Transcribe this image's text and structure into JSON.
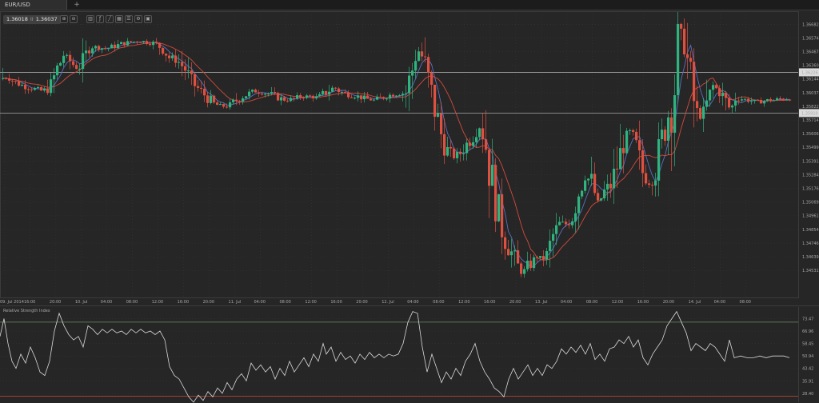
{
  "tab": {
    "label": "EUR/USD",
    "add_label": "+"
  },
  "quote": {
    "bid": "1.36018",
    "separator": "II",
    "ask": "1.36037"
  },
  "toolbar": [
    {
      "icon": "zoom-in-icon",
      "glyph": "⊕"
    },
    {
      "icon": "zoom-out-icon",
      "glyph": "⊖"
    },
    {
      "icon": "chart-type-icon",
      "glyph": "▥"
    },
    {
      "icon": "indicators-icon",
      "glyph": "ƒ"
    },
    {
      "icon": "drawing-tools-icon",
      "glyph": "╱"
    },
    {
      "icon": "template-icon",
      "glyph": "▦"
    },
    {
      "icon": "objects-icon",
      "glyph": "☰"
    },
    {
      "icon": "settings-icon",
      "glyph": "⚙"
    },
    {
      "icon": "screenshot-icon",
      "glyph": "▣"
    }
  ],
  "colors": {
    "background": "#262626",
    "grid": "#3a3a3a",
    "up": "#2fb37f",
    "down": "#e05040",
    "ma_fast": "#5b6fc2",
    "ma_slow": "#d24a3e",
    "hline": "#a8a8a8",
    "rsi": "#d8d8d8",
    "rsi_upper": "#6f8f68",
    "rsi_lower": "#b64336"
  },
  "chart_data": [
    {
      "type": "candlestick",
      "title": "",
      "ylim": [
        1.3448,
        1.367
      ],
      "y_ticks": [
        "1.36682",
        "1.36574",
        "1.36467",
        "1.36360",
        "1.36144",
        "1.36037",
        "1.35822",
        "1.35714",
        "1.35606",
        "1.35499",
        "1.35391",
        "1.35284",
        "1.35176",
        "1.35069",
        "1.34961",
        "1.34854",
        "1.34746",
        "1.34639",
        "1.34531"
      ],
      "x_ticks": [
        "09. Jul 2014",
        "16:00",
        "20:00",
        "10. Jul",
        "04:00",
        "08:00",
        "12:00",
        "16:00",
        "20:00",
        "11. Jul",
        "04:00",
        "08:00",
        "12:00",
        "16:00",
        "20:00",
        "12. Jul",
        "04:00",
        "08:00",
        "12:00",
        "16:00",
        "20:00",
        "13. Jul",
        "04:00",
        "08:00",
        "12:00",
        "16:00",
        "20:00",
        "14. Jul",
        "04:00",
        "08:00"
      ],
      "horizontal_lines": [
        {
          "value": 1.36226,
          "label": "1.36226"
        },
        {
          "value": 1.3591,
          "label": "1.35910"
        }
      ],
      "moving_averages": [
        "fast",
        "slow"
      ],
      "path_points": [
        [
          0,
          1.3618
        ],
        [
          8,
          1.3619
        ],
        [
          18,
          1.3615
        ],
        [
          28,
          1.3612
        ],
        [
          40,
          1.361
        ],
        [
          52,
          1.3608
        ],
        [
          62,
          1.3612
        ],
        [
          70,
          1.3625
        ],
        [
          78,
          1.3636
        ],
        [
          88,
          1.363
        ],
        [
          96,
          1.3625
        ],
        [
          104,
          1.3632
        ],
        [
          110,
          1.3643
        ],
        [
          120,
          1.3642
        ],
        [
          132,
          1.3641
        ],
        [
          142,
          1.3643
        ],
        [
          152,
          1.3645
        ],
        [
          162,
          1.3646
        ],
        [
          172,
          1.3647
        ],
        [
          182,
          1.3646
        ],
        [
          192,
          1.3645
        ],
        [
          202,
          1.3641
        ],
        [
          210,
          1.3634
        ],
        [
          220,
          1.3632
        ],
        [
          230,
          1.3625
        ],
        [
          238,
          1.3615
        ],
        [
          246,
          1.361
        ],
        [
          256,
          1.3604
        ],
        [
          266,
          1.3598
        ],
        [
          276,
          1.3596
        ],
        [
          286,
          1.3597
        ],
        [
          296,
          1.3602
        ],
        [
          306,
          1.3605
        ],
        [
          316,
          1.3608
        ],
        [
          326,
          1.3607
        ],
        [
          336,
          1.3606
        ],
        [
          346,
          1.3603
        ],
        [
          356,
          1.3601
        ],
        [
          366,
          1.3602
        ],
        [
          376,
          1.3604
        ],
        [
          386,
          1.3604
        ],
        [
          396,
          1.3603
        ],
        [
          406,
          1.3607
        ],
        [
          416,
          1.3611
        ],
        [
          426,
          1.3607
        ],
        [
          436,
          1.3605
        ],
        [
          446,
          1.3604
        ],
        [
          456,
          1.3602
        ],
        [
          466,
          1.3601
        ],
        [
          476,
          1.3603
        ],
        [
          486,
          1.3605
        ],
        [
          496,
          1.3606
        ],
        [
          506,
          1.3607
        ],
        [
          514,
          1.3625
        ],
        [
          520,
          1.3641
        ],
        [
          528,
          1.3633
        ],
        [
          534,
          1.3615
        ],
        [
          540,
          1.36
        ],
        [
          546,
          1.3584
        ],
        [
          552,
          1.357
        ],
        [
          558,
          1.3562
        ],
        [
          566,
          1.3557
        ],
        [
          574,
          1.356
        ],
        [
          582,
          1.3567
        ],
        [
          590,
          1.3573
        ],
        [
          598,
          1.358
        ],
        [
          604,
          1.3574
        ],
        [
          610,
          1.355
        ],
        [
          616,
          1.353
        ],
        [
          622,
          1.3512
        ],
        [
          628,
          1.3497
        ],
        [
          634,
          1.3488
        ],
        [
          640,
          1.348
        ],
        [
          646,
          1.3472
        ],
        [
          652,
          1.3467
        ],
        [
          658,
          1.3472
        ],
        [
          664,
          1.3475
        ],
        [
          670,
          1.348
        ],
        [
          676,
          1.3478
        ],
        [
          682,
          1.348
        ],
        [
          690,
          1.3496
        ],
        [
          698,
          1.3505
        ],
        [
          706,
          1.3505
        ],
        [
          714,
          1.3512
        ],
        [
          722,
          1.353
        ],
        [
          730,
          1.3542
        ],
        [
          738,
          1.3538
        ],
        [
          746,
          1.352
        ],
        [
          754,
          1.353
        ],
        [
          762,
          1.3535
        ],
        [
          770,
          1.355
        ],
        [
          778,
          1.3568
        ],
        [
          786,
          1.3576
        ],
        [
          794,
          1.3563
        ],
        [
          802,
          1.3545
        ],
        [
          810,
          1.3537
        ],
        [
          818,
          1.3548
        ],
        [
          826,
          1.357
        ],
        [
          834,
          1.359
        ],
        [
          840,
          1.3598
        ],
        [
          846,
          1.364
        ],
        [
          852,
          1.3655
        ],
        [
          858,
          1.363
        ],
        [
          864,
          1.3605
        ],
        [
          870,
          1.359
        ],
        [
          876,
          1.3587
        ],
        [
          882,
          1.3597
        ],
        [
          890,
          1.3612
        ],
        [
          898,
          1.3608
        ],
        [
          906,
          1.36
        ],
        [
          912,
          1.3593
        ],
        [
          918,
          1.3603
        ],
        [
          926,
          1.3602
        ],
        [
          934,
          1.3601
        ],
        [
          942,
          1.36
        ],
        [
          950,
          1.36
        ],
        [
          958,
          1.3601
        ],
        [
          966,
          1.3601
        ],
        [
          974,
          1.3602
        ],
        [
          982,
          1.3602
        ],
        [
          987,
          1.3602
        ]
      ]
    },
    {
      "type": "line",
      "title": "Relative Strength Index",
      "ylim": [
        25.0,
        78.5
      ],
      "y_ticks": [
        "73.47",
        "66.96",
        "58.45",
        "50.94",
        "43.42",
        "35.91",
        "28.40"
      ],
      "levels": [
        70,
        28.4
      ],
      "points": [
        [
          0,
          62
        ],
        [
          5,
          72
        ],
        [
          10,
          58
        ],
        [
          15,
          48
        ],
        [
          20,
          44
        ],
        [
          26,
          52
        ],
        [
          32,
          47
        ],
        [
          38,
          56
        ],
        [
          44,
          50
        ],
        [
          50,
          42
        ],
        [
          56,
          40
        ],
        [
          62,
          48
        ],
        [
          68,
          65
        ],
        [
          74,
          75
        ],
        [
          80,
          68
        ],
        [
          86,
          63
        ],
        [
          92,
          60
        ],
        [
          98,
          62
        ],
        [
          104,
          56
        ],
        [
          110,
          68
        ],
        [
          116,
          66
        ],
        [
          122,
          63
        ],
        [
          128,
          66
        ],
        [
          134,
          64
        ],
        [
          140,
          66
        ],
        [
          146,
          64
        ],
        [
          152,
          65
        ],
        [
          158,
          63
        ],
        [
          164,
          66
        ],
        [
          170,
          64
        ],
        [
          176,
          66
        ],
        [
          182,
          64
        ],
        [
          188,
          65
        ],
        [
          194,
          63
        ],
        [
          200,
          65
        ],
        [
          206,
          60
        ],
        [
          212,
          45
        ],
        [
          218,
          40
        ],
        [
          224,
          38
        ],
        [
          230,
          33
        ],
        [
          236,
          28
        ],
        [
          242,
          25
        ],
        [
          248,
          29
        ],
        [
          254,
          26
        ],
        [
          260,
          31
        ],
        [
          266,
          28
        ],
        [
          272,
          33
        ],
        [
          278,
          30
        ],
        [
          284,
          36
        ],
        [
          290,
          32
        ],
        [
          296,
          38
        ],
        [
          302,
          41
        ],
        [
          308,
          37
        ],
        [
          314,
          47
        ],
        [
          320,
          43
        ],
        [
          326,
          46
        ],
        [
          332,
          42
        ],
        [
          338,
          45
        ],
        [
          344,
          38
        ],
        [
          350,
          44
        ],
        [
          356,
          40
        ],
        [
          362,
          48
        ],
        [
          368,
          42
        ],
        [
          374,
          46
        ],
        [
          380,
          50
        ],
        [
          386,
          45
        ],
        [
          392,
          52
        ],
        [
          398,
          48
        ],
        [
          404,
          58
        ],
        [
          408,
          52
        ],
        [
          414,
          56
        ],
        [
          420,
          48
        ],
        [
          426,
          53
        ],
        [
          432,
          49
        ],
        [
          438,
          51
        ],
        [
          444,
          47
        ],
        [
          450,
          52
        ],
        [
          456,
          49
        ],
        [
          462,
          53
        ],
        [
          468,
          50
        ],
        [
          474,
          52
        ],
        [
          480,
          50
        ],
        [
          486,
          52
        ],
        [
          492,
          51
        ],
        [
          498,
          52
        ],
        [
          504,
          58
        ],
        [
          510,
          70
        ],
        [
          516,
          76
        ],
        [
          522,
          75
        ],
        [
          528,
          56
        ],
        [
          534,
          42
        ],
        [
          540,
          52
        ],
        [
          546,
          44
        ],
        [
          552,
          36
        ],
        [
          558,
          42
        ],
        [
          564,
          38
        ],
        [
          570,
          44
        ],
        [
          576,
          40
        ],
        [
          582,
          48
        ],
        [
          588,
          52
        ],
        [
          594,
          58
        ],
        [
          600,
          48
        ],
        [
          606,
          42
        ],
        [
          612,
          38
        ],
        [
          618,
          33
        ],
        [
          624,
          31
        ],
        [
          630,
          28
        ],
        [
          636,
          38
        ],
        [
          642,
          44
        ],
        [
          648,
          38
        ],
        [
          654,
          42
        ],
        [
          660,
          46
        ],
        [
          666,
          40
        ],
        [
          672,
          44
        ],
        [
          678,
          40
        ],
        [
          684,
          46
        ],
        [
          690,
          44
        ],
        [
          696,
          48
        ],
        [
          702,
          55
        ],
        [
          708,
          52
        ],
        [
          714,
          56
        ],
        [
          720,
          53
        ],
        [
          726,
          57
        ],
        [
          732,
          52
        ],
        [
          738,
          58
        ],
        [
          744,
          49
        ],
        [
          750,
          52
        ],
        [
          756,
          48
        ],
        [
          762,
          55
        ],
        [
          768,
          56
        ],
        [
          774,
          60
        ],
        [
          780,
          58
        ],
        [
          786,
          62
        ],
        [
          792,
          56
        ],
        [
          798,
          60
        ],
        [
          804,
          50
        ],
        [
          810,
          46
        ],
        [
          816,
          52
        ],
        [
          822,
          56
        ],
        [
          828,
          60
        ],
        [
          834,
          68
        ],
        [
          840,
          72
        ],
        [
          846,
          76
        ],
        [
          852,
          70
        ],
        [
          858,
          64
        ],
        [
          864,
          54
        ],
        [
          870,
          58
        ],
        [
          876,
          56
        ],
        [
          882,
          54
        ],
        [
          888,
          58
        ],
        [
          894,
          56
        ],
        [
          900,
          52
        ],
        [
          906,
          48
        ],
        [
          912,
          60
        ],
        [
          918,
          50
        ],
        [
          926,
          51
        ],
        [
          934,
          50
        ],
        [
          942,
          50
        ],
        [
          950,
          51
        ],
        [
          958,
          50
        ],
        [
          966,
          51
        ],
        [
          974,
          51
        ],
        [
          980,
          51
        ],
        [
          987,
          50
        ]
      ]
    }
  ]
}
